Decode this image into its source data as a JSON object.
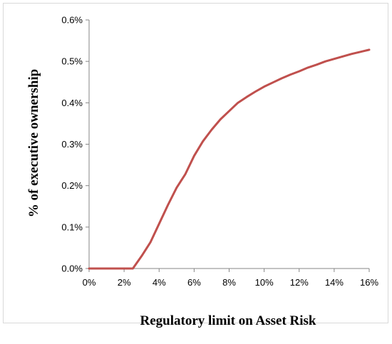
{
  "chart_data": {
    "type": "line",
    "title": "",
    "xlabel": "Regulatory limit on Asset Risk",
    "ylabel": "% of executive ownership",
    "xlim": [
      0,
      16
    ],
    "ylim": [
      0,
      0.6
    ],
    "x_ticks": [
      "0%",
      "2%",
      "4%",
      "6%",
      "8%",
      "10%",
      "12%",
      "14%",
      "16%"
    ],
    "y_ticks": [
      "0.0%",
      "0.1%",
      "0.2%",
      "0.3%",
      "0.4%",
      "0.5%",
      "0.6%"
    ],
    "grid": false,
    "legend": "none",
    "series": [
      {
        "color": "#c0504d",
        "x": [
          0,
          1,
          2,
          2.5,
          3,
          3.5,
          4,
          4.5,
          5,
          5.5,
          6,
          6.5,
          7,
          7.5,
          8,
          8.5,
          9,
          9.5,
          10,
          10.5,
          11,
          11.5,
          12,
          12.5,
          13,
          13.5,
          14,
          14.5,
          15,
          15.5,
          16
        ],
        "y": [
          0,
          0,
          0,
          0,
          0.03,
          0.063,
          0.108,
          0.153,
          0.195,
          0.228,
          0.272,
          0.307,
          0.335,
          0.36,
          0.38,
          0.4,
          0.414,
          0.427,
          0.439,
          0.449,
          0.459,
          0.468,
          0.476,
          0.485,
          0.492,
          0.5,
          0.506,
          0.512,
          0.518,
          0.523,
          0.528
        ]
      }
    ]
  }
}
